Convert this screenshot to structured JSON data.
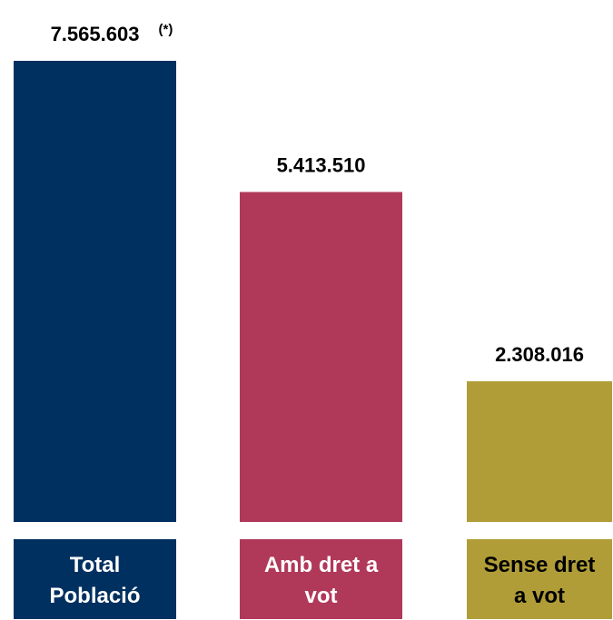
{
  "chart_data": {
    "type": "bar",
    "categories": [
      [
        "Total",
        "Població"
      ],
      [
        "Amb dret a",
        "vot"
      ],
      [
        "Sense dret",
        "a vot"
      ]
    ],
    "values": [
      7565603,
      5413510,
      2308016
    ],
    "value_labels": [
      "7.565.603",
      "5.413.510",
      "2.308.016"
    ],
    "value_notes": [
      "(*)",
      "",
      ""
    ],
    "colors": [
      "#003060",
      "#b0395a",
      "#b09d38"
    ],
    "category_text_colors": [
      "#ffffff",
      "#ffffff",
      "#000000"
    ],
    "title": "",
    "xlabel": "",
    "ylabel": "",
    "ylim": [
      0,
      7565603
    ],
    "grid": false,
    "legend": "none"
  }
}
